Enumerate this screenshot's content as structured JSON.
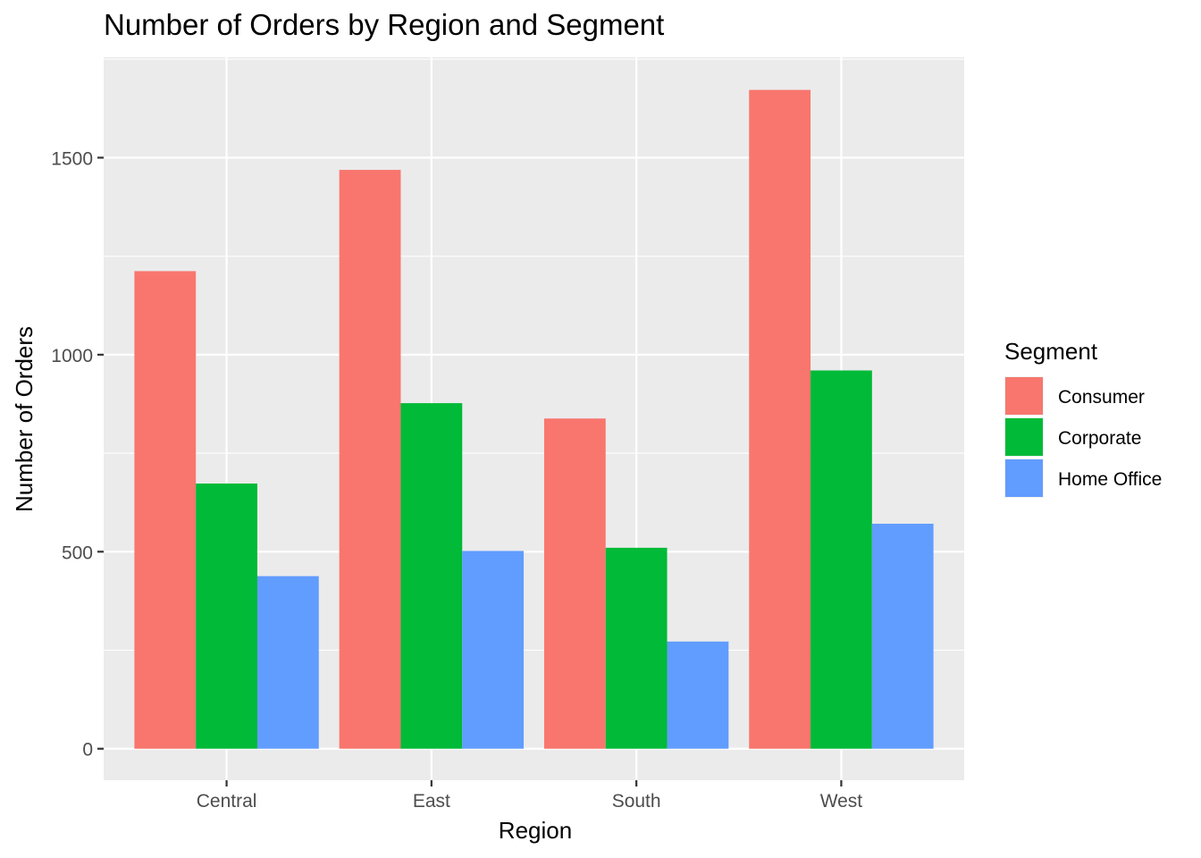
{
  "chart_data": {
    "type": "bar",
    "title": "Number of Orders by Region and Segment",
    "xlabel": "Region",
    "ylabel": "Number of Orders",
    "categories": [
      "Central",
      "East",
      "South",
      "West"
    ],
    "legend": {
      "title": "Segment",
      "position": "right"
    },
    "series": [
      {
        "name": "Consumer",
        "color": "#F8766D",
        "values": [
          1212,
          1469,
          838,
          1672
        ]
      },
      {
        "name": "Corporate",
        "color": "#00BA38",
        "values": [
          673,
          877,
          510,
          960
        ]
      },
      {
        "name": "Home Office",
        "color": "#619CFF",
        "values": [
          438,
          502,
          272,
          571
        ]
      }
    ],
    "ylim": [
      -80,
      1755
    ],
    "yticks": [
      0,
      500,
      1000,
      1500
    ],
    "grid": true,
    "panel_background": "#EBEBEB",
    "grid_color": "#FFFFFF"
  }
}
